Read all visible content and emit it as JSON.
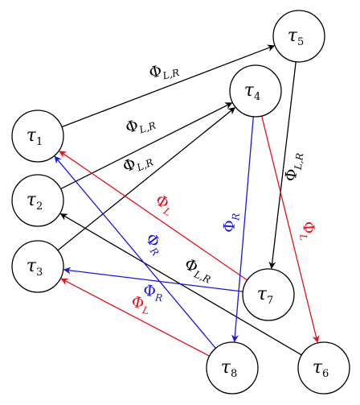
{
  "colors": {
    "black": "#000000",
    "red": "#e8101a",
    "blue": "#1a16e0"
  },
  "nodes": [
    {
      "id": "t1",
      "symbol": "τ",
      "subscript": "1"
    },
    {
      "id": "t2",
      "symbol": "τ",
      "subscript": "2"
    },
    {
      "id": "t3",
      "symbol": "τ",
      "subscript": "3"
    },
    {
      "id": "t4",
      "symbol": "τ",
      "subscript": "4"
    },
    {
      "id": "t5",
      "symbol": "τ",
      "subscript": "5"
    },
    {
      "id": "t6",
      "symbol": "τ",
      "subscript": "6"
    },
    {
      "id": "t7",
      "symbol": "τ",
      "subscript": "7"
    },
    {
      "id": "t8",
      "symbol": "τ",
      "subscript": "8"
    }
  ],
  "edges": [
    {
      "id": "e1-5",
      "from": "t1",
      "to": "t5",
      "color": "black",
      "symbol": "Φ",
      "subscript": "L,R"
    },
    {
      "id": "e2-4",
      "from": "t2",
      "to": "t4",
      "color": "black",
      "symbol": "Φ",
      "subscript": "L,R"
    },
    {
      "id": "e3-4",
      "from": "t3",
      "to": "t4",
      "color": "black",
      "symbol": "Φ",
      "subscript": "L,R"
    },
    {
      "id": "e5-7",
      "from": "t5",
      "to": "t7",
      "color": "black",
      "symbol": "Φ",
      "subscript": "L,R"
    },
    {
      "id": "e6-2",
      "from": "t6",
      "to": "t2",
      "color": "black",
      "symbol": "Φ",
      "subscript": "L,R"
    },
    {
      "id": "e7-1",
      "from": "t7",
      "to": "t1",
      "color": "red",
      "symbol": "Φ",
      "subscript": "L"
    },
    {
      "id": "e4-6",
      "from": "t4",
      "to": "t6",
      "color": "red",
      "symbol": "Φ",
      "subscript": "L"
    },
    {
      "id": "e8-3",
      "from": "t8",
      "to": "t3",
      "color": "red",
      "symbol": "Φ",
      "subscript": "L"
    },
    {
      "id": "e4-8",
      "from": "t4",
      "to": "t8",
      "color": "blue",
      "symbol": "Φ",
      "subscript": "R"
    },
    {
      "id": "e8-1",
      "from": "t8",
      "to": "t1",
      "color": "blue",
      "symbol": "Φ",
      "subscript": "R"
    },
    {
      "id": "e7-3",
      "from": "t7",
      "to": "t3",
      "color": "blue",
      "symbol": "Φ",
      "subscript": "R"
    }
  ]
}
